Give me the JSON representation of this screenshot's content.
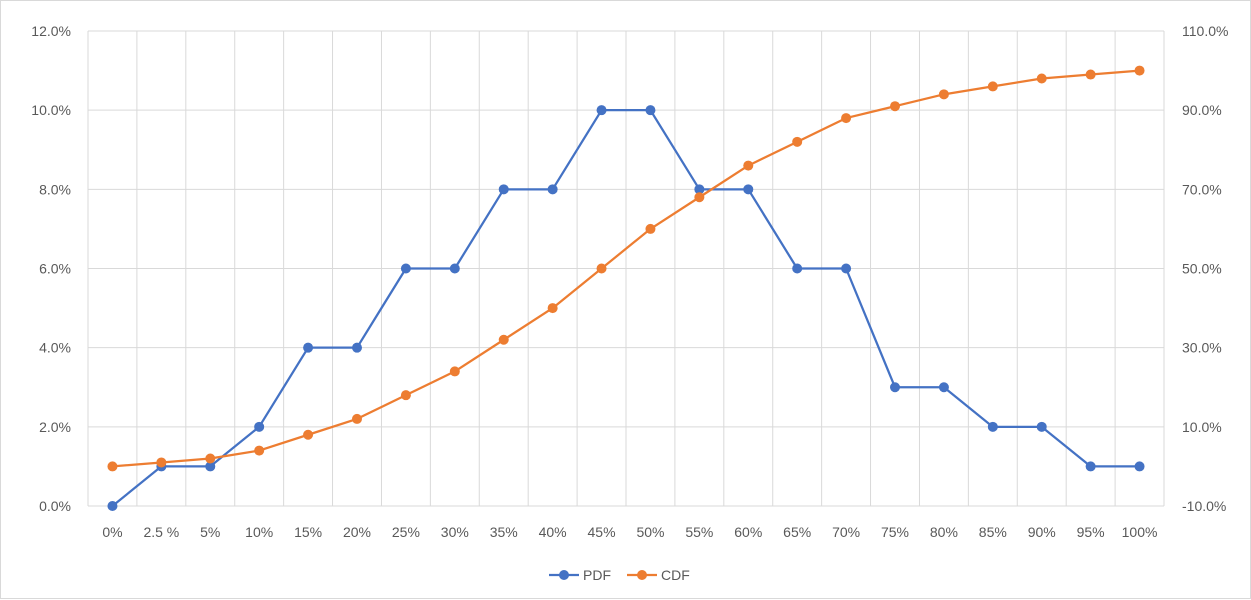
{
  "chart_data": {
    "type": "line",
    "title": "",
    "xlabel": "",
    "ylabel": "",
    "categories": [
      "0%",
      "2.5 %",
      "5%",
      "10%",
      "15%",
      "20%",
      "25%",
      "30%",
      "35%",
      "40%",
      "45%",
      "50%",
      "55%",
      "60%",
      "65%",
      "70%",
      "75%",
      "80%",
      "85%",
      "90%",
      "95%",
      "100%"
    ],
    "y_primary": {
      "ylim": [
        0,
        12
      ],
      "ticks": [
        0,
        2,
        4,
        6,
        8,
        10,
        12
      ],
      "tick_labels": [
        "0.0%",
        "2.0%",
        "4.0%",
        "6.0%",
        "8.0%",
        "10.0%",
        "12.0%"
      ]
    },
    "y_secondary": {
      "ylim": [
        -10,
        110
      ],
      "ticks": [
        -10,
        10,
        30,
        50,
        70,
        90,
        110
      ],
      "tick_labels": [
        "-10.0%",
        "10.0%",
        "30.0%",
        "50.0%",
        "70.0%",
        "90.0%",
        "110.0%"
      ]
    },
    "grid": true,
    "legend_position": "bottom",
    "series": [
      {
        "name": "PDF",
        "axis": "primary",
        "color": "#4472C4",
        "values": [
          0,
          1,
          1,
          2,
          4,
          4,
          6,
          6,
          8,
          8,
          10,
          10,
          8,
          8,
          6,
          6,
          3,
          3,
          2,
          2,
          1,
          1
        ]
      },
      {
        "name": "CDF",
        "axis": "secondary",
        "color": "#ED7D31",
        "values": [
          0,
          1,
          2,
          4,
          8,
          12,
          18,
          24,
          32,
          40,
          50,
          60,
          68,
          76,
          82,
          88,
          91,
          94,
          96,
          98,
          99,
          100
        ]
      }
    ]
  }
}
